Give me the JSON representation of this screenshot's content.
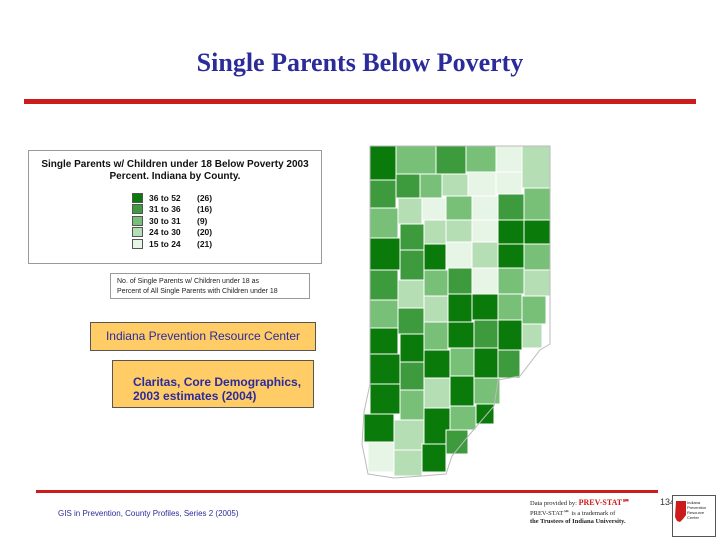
{
  "title": "Single Parents Below Poverty",
  "legend": {
    "title_line1": "Single Parents w/ Children under 18 Below Poverty 2003",
    "title_line2": "Percent.  Indiana by County.",
    "items": [
      {
        "range": "36 to 52",
        "count": "(26)",
        "color": "#0a7a0a"
      },
      {
        "range": "31 to 36",
        "count": "(16)",
        "color": "#3d9a3d"
      },
      {
        "range": "30 to 31",
        "count": "(9)",
        "color": "#78c078"
      },
      {
        "range": "24 to 30",
        "count": "(20)",
        "color": "#b5deb5"
      },
      {
        "range": "15 to 24",
        "count": "(21)",
        "color": "#e6f5e6"
      }
    ]
  },
  "note": {
    "line1": "No. of Single Parents w/ Children under 18 as",
    "line2": "Percent of All Single Parents with Children under 18"
  },
  "irpc_label": "Indiana Prevention Resource Center",
  "source": {
    "line1": "Claritas, Core Demographics,",
    "line2": "2003 estimates (2004)"
  },
  "footer_text": "GIS in Prevention, County Profiles, Series 2 (2005)",
  "page_number": "134",
  "prevstat": {
    "line1_prefix": "Data provided by:",
    "line1_brand": "PREV-STAT℠",
    "line2": "PREV-STAT℠ is a trademark of",
    "line3": "the Trustees of Indiana University."
  },
  "logo_text": "Indiana Prevention Resource Center",
  "map_colors": {
    "c1": "#0a7a0a",
    "c2": "#3d9a3d",
    "c3": "#78c078",
    "c4": "#b5deb5",
    "c5": "#e6f5e6",
    "border": "#ffffff"
  }
}
